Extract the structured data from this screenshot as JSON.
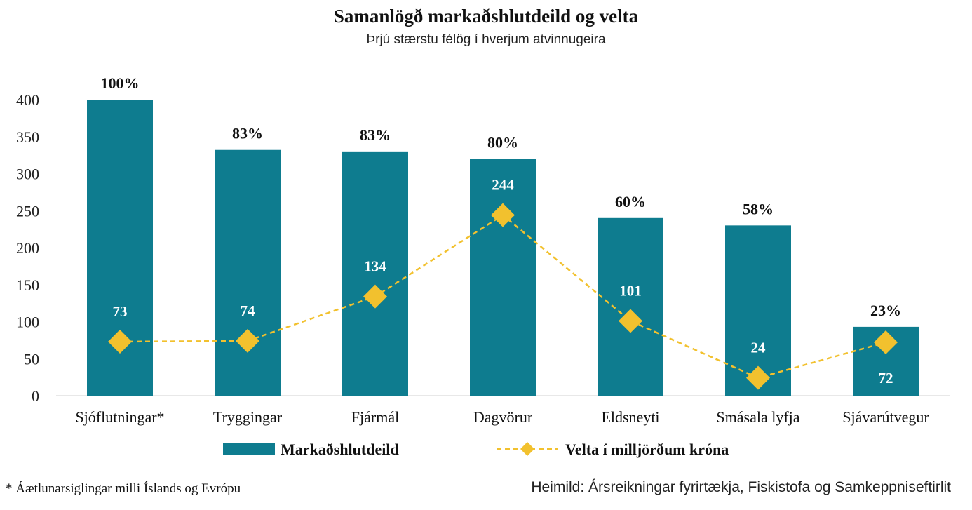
{
  "chart_data": {
    "type": "bar",
    "title": "Samanlögð markaðshlutdeild og velta",
    "subtitle": "Þrjú stærstu félög í hverjum atvinnugeira",
    "categories": [
      "Sjóflutningar*",
      "Tryggingar",
      "Fjármál",
      "Dagvörur",
      "Eldsneyti",
      "Smásala lyfja",
      "Sjávarútvegur"
    ],
    "ylim": [
      0,
      400
    ],
    "yticks": [
      "0",
      "50",
      "100",
      "150",
      "200",
      "250",
      "300",
      "350",
      "400"
    ],
    "series": [
      {
        "name": "Markaðshlutdeild",
        "kind": "bar",
        "color": "#0e7c8f",
        "values": [
          400,
          332,
          330,
          320,
          240,
          230,
          93
        ],
        "labels": [
          "100%",
          "83%",
          "83%",
          "80%",
          "60%",
          "58%",
          "23%"
        ]
      },
      {
        "name": "Velta í milljörðum króna",
        "kind": "line",
        "color": "#f2c12e",
        "values": [
          73,
          74,
          134,
          244,
          101,
          24,
          72
        ],
        "labels": [
          "73",
          "74",
          "134",
          "244",
          "101",
          "24",
          "72"
        ]
      }
    ],
    "legend_position": "bottom",
    "grid": false
  },
  "footnote": "* Áætlunarsiglingar milli Íslands og Evrópu",
  "source": "Heimild: Ársreikningar fyrirtækja, Fiskistofa og Samkeppniseftirlit"
}
